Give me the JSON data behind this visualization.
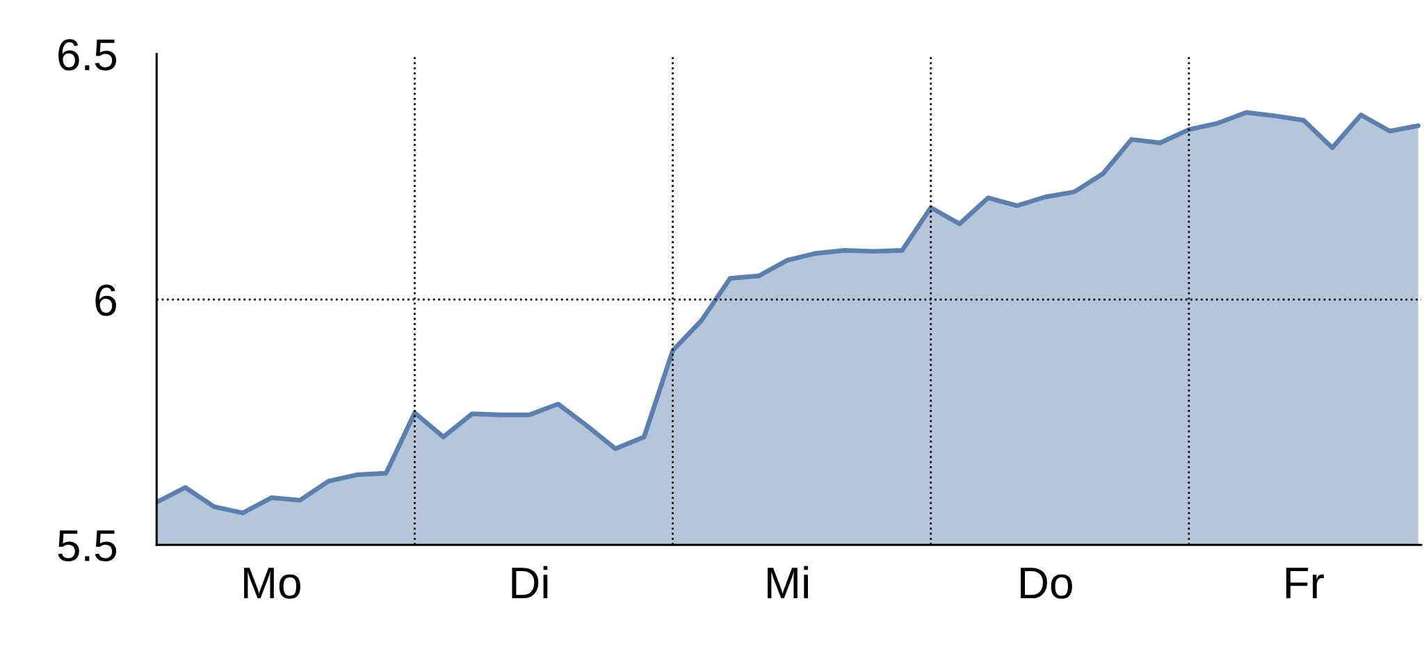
{
  "chart_data": {
    "type": "area",
    "categories": [
      null,
      null,
      null,
      null,
      "Mo",
      null,
      null,
      null,
      null,
      null,
      null,
      null,
      null,
      "Di",
      null,
      null,
      null,
      null,
      null,
      null,
      null,
      null,
      "Mi",
      null,
      null,
      null,
      null,
      null,
      null,
      null,
      null,
      "Do",
      null,
      null,
      null,
      null,
      null,
      null,
      null,
      null,
      "Fr",
      null,
      null,
      null,
      null
    ],
    "series": [
      {
        "color": "#5b80b0",
        "values": [
          5.587,
          5.617,
          5.578,
          5.565,
          5.596,
          5.591,
          5.63,
          5.643,
          5.646,
          5.769,
          5.72,
          5.767,
          5.765,
          5.765,
          5.787,
          5.743,
          5.696,
          5.72,
          5.896,
          5.957,
          6.043,
          6.048,
          6.08,
          6.094,
          6.1,
          6.098,
          6.1,
          6.187,
          6.154,
          6.207,
          6.191,
          6.209,
          6.219,
          6.256,
          6.326,
          6.319,
          6.346,
          6.359,
          6.381,
          6.374,
          6.365,
          6.309,
          6.376,
          6.343,
          6.354
        ]
      }
    ],
    "ylim": [
      5.5,
      6.5
    ],
    "yticks": [
      5.5,
      6,
      6.5
    ],
    "grid": true,
    "legend": false
  }
}
